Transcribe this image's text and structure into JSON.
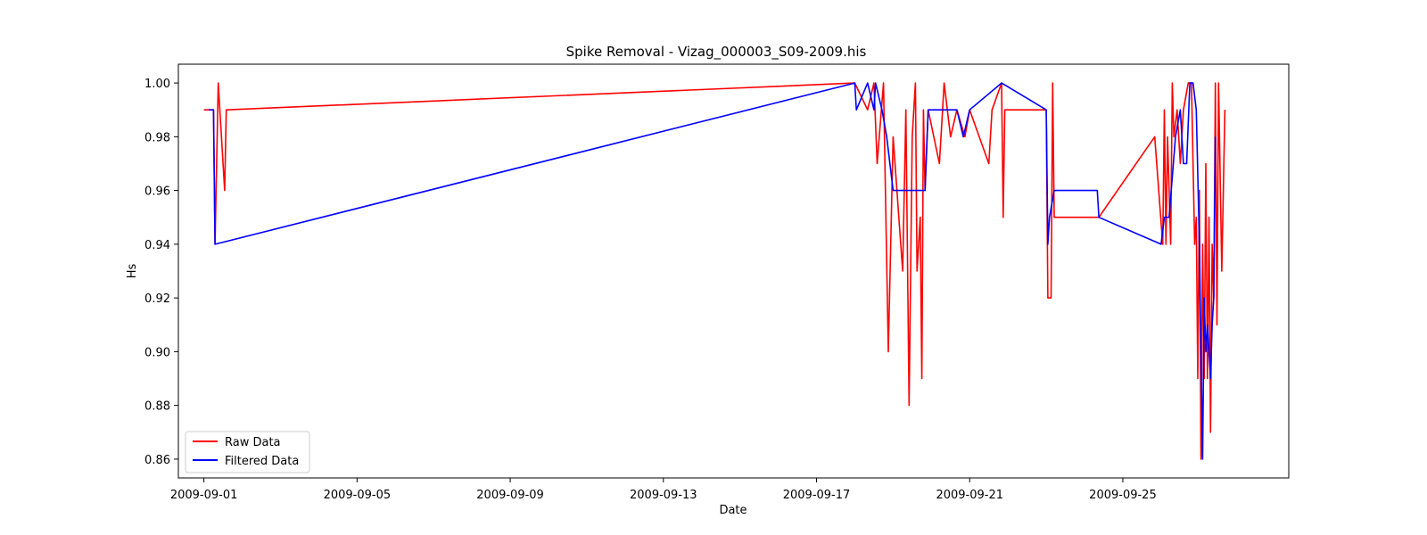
{
  "chart_data": {
    "type": "line",
    "title": "Spike Removal - Vizag_000003_S09-2009.his",
    "xlabel": "Date",
    "ylabel": "Hs",
    "x_axis_type": "date",
    "xlim": [
      "2009-08-31T08:00",
      "2009-09-29T08:00"
    ],
    "ylim": [
      0.853,
      1.007
    ],
    "x_ticks": [
      "2009-09-01",
      "2009-09-05",
      "2009-09-09",
      "2009-09-13",
      "2009-09-17",
      "2009-09-21",
      "2009-09-25"
    ],
    "y_ticks": [
      0.86,
      0.88,
      0.9,
      0.92,
      0.94,
      0.96,
      0.98,
      1.0
    ],
    "y_tick_labels": [
      "0.86",
      "0.88",
      "0.90",
      "0.92",
      "0.94",
      "0.96",
      "0.98",
      "1.00"
    ],
    "grid": false,
    "legend_position": "lower-left",
    "series": [
      {
        "name": "Raw Data",
        "color": "#ff0000",
        "points": [
          [
            "2009-09-01T00:00",
            0.99
          ],
          [
            "2009-09-01T06:00",
            0.99
          ],
          [
            "2009-09-01T07:00",
            0.94
          ],
          [
            "2009-09-01T09:00",
            1.0
          ],
          [
            "2009-09-01T13:00",
            0.96
          ],
          [
            "2009-09-01T14:00",
            0.99
          ],
          [
            "2009-09-18T00:00",
            1.0
          ],
          [
            "2009-09-18T08:00",
            0.99
          ],
          [
            "2009-09-18T12:00",
            1.0
          ],
          [
            "2009-09-18T14:00",
            0.97
          ],
          [
            "2009-09-18T18:00",
            1.0
          ],
          [
            "2009-09-18T21:00",
            0.9
          ],
          [
            "2009-09-19T00:00",
            0.98
          ],
          [
            "2009-09-19T06:00",
            0.93
          ],
          [
            "2009-09-19T08:00",
            0.99
          ],
          [
            "2009-09-19T10:00",
            0.88
          ],
          [
            "2009-09-19T12:00",
            0.98
          ],
          [
            "2009-09-19T14:00",
            1.0
          ],
          [
            "2009-09-19T15:00",
            0.93
          ],
          [
            "2009-09-19T17:00",
            0.95
          ],
          [
            "2009-09-19T18:00",
            0.89
          ],
          [
            "2009-09-19T19:00",
            0.99
          ],
          [
            "2009-09-19T20:00",
            0.96
          ],
          [
            "2009-09-19T22:00",
            0.99
          ],
          [
            "2009-09-20T05:00",
            0.97
          ],
          [
            "2009-09-20T08:00",
            1.0
          ],
          [
            "2009-09-20T12:00",
            0.98
          ],
          [
            "2009-09-20T16:00",
            0.99
          ],
          [
            "2009-09-20T21:00",
            0.98
          ],
          [
            "2009-09-21T00:00",
            0.99
          ],
          [
            "2009-09-21T12:00",
            0.97
          ],
          [
            "2009-09-21T14:00",
            0.99
          ],
          [
            "2009-09-21T20:00",
            1.0
          ],
          [
            "2009-09-21T21:00",
            0.95
          ],
          [
            "2009-09-21T22:00",
            0.99
          ],
          [
            "2009-09-23T00:00",
            0.99
          ],
          [
            "2009-09-23T01:00",
            0.92
          ],
          [
            "2009-09-23T03:00",
            0.92
          ],
          [
            "2009-09-23T04:00",
            1.0
          ],
          [
            "2009-09-23T05:00",
            0.95
          ],
          [
            "2009-09-24T09:00",
            0.95
          ],
          [
            "2009-09-25T20:00",
            0.98
          ],
          [
            "2009-09-26T01:00",
            0.94
          ],
          [
            "2009-09-26T02:00",
            0.99
          ],
          [
            "2009-09-26T03:00",
            0.94
          ],
          [
            "2009-09-26T04:00",
            0.98
          ],
          [
            "2009-09-26T06:00",
            0.94
          ],
          [
            "2009-09-26T07:00",
            1.0
          ],
          [
            "2009-09-26T08:00",
            0.98
          ],
          [
            "2009-09-26T10:00",
            0.99
          ],
          [
            "2009-09-26T12:00",
            0.97
          ],
          [
            "2009-09-26T14:00",
            0.99
          ],
          [
            "2009-09-26T17:00",
            1.0
          ],
          [
            "2009-09-26T19:00",
            1.0
          ],
          [
            "2009-09-26T21:00",
            0.94
          ],
          [
            "2009-09-26T22:00",
            0.95
          ],
          [
            "2009-09-26T23:00",
            0.89
          ],
          [
            "2009-09-27T00:00",
            0.96
          ],
          [
            "2009-09-27T01:00",
            0.86
          ],
          [
            "2009-09-27T02:00",
            0.94
          ],
          [
            "2009-09-27T03:00",
            0.89
          ],
          [
            "2009-09-27T04:00",
            0.97
          ],
          [
            "2009-09-27T05:00",
            0.89
          ],
          [
            "2009-09-27T06:00",
            0.95
          ],
          [
            "2009-09-27T07:00",
            0.87
          ],
          [
            "2009-09-27T08:00",
            0.94
          ],
          [
            "2009-09-27T09:00",
            0.92
          ],
          [
            "2009-09-27T10:00",
            1.0
          ],
          [
            "2009-09-27T11:00",
            0.91
          ],
          [
            "2009-09-27T12:00",
            1.0
          ],
          [
            "2009-09-27T14:00",
            0.93
          ],
          [
            "2009-09-27T16:00",
            0.99
          ]
        ]
      },
      {
        "name": "Filtered Data",
        "color": "#0000ff",
        "points": [
          [
            "2009-09-01T03:00",
            0.99
          ],
          [
            "2009-09-01T06:00",
            0.99
          ],
          [
            "2009-09-01T07:00",
            0.94
          ],
          [
            "2009-09-18T00:00",
            1.0
          ],
          [
            "2009-09-18T01:00",
            0.99
          ],
          [
            "2009-09-18T08:00",
            1.0
          ],
          [
            "2009-09-18T12:00",
            0.99
          ],
          [
            "2009-09-18T13:00",
            1.0
          ],
          [
            "2009-09-18T17:00",
            0.99
          ],
          [
            "2009-09-18T20:00",
            0.98
          ],
          [
            "2009-09-19T00:00",
            0.96
          ],
          [
            "2009-09-19T14:00",
            0.96
          ],
          [
            "2009-09-19T20:00",
            0.96
          ],
          [
            "2009-09-19T22:00",
            0.99
          ],
          [
            "2009-09-20T06:00",
            0.99
          ],
          [
            "2009-09-20T16:00",
            0.99
          ],
          [
            "2009-09-20T20:00",
            0.98
          ],
          [
            "2009-09-21T00:00",
            0.99
          ],
          [
            "2009-09-21T20:00",
            1.0
          ],
          [
            "2009-09-23T00:00",
            0.99
          ],
          [
            "2009-09-23T01:00",
            0.94
          ],
          [
            "2009-09-23T02:00",
            0.95
          ],
          [
            "2009-09-23T05:00",
            0.96
          ],
          [
            "2009-09-24T08:00",
            0.96
          ],
          [
            "2009-09-24T09:00",
            0.95
          ],
          [
            "2009-09-26T00:00",
            0.94
          ],
          [
            "2009-09-26T02:00",
            0.95
          ],
          [
            "2009-09-26T05:00",
            0.95
          ],
          [
            "2009-09-26T09:00",
            0.98
          ],
          [
            "2009-09-26T12:00",
            0.99
          ],
          [
            "2009-09-26T14:00",
            0.97
          ],
          [
            "2009-09-26T16:00",
            0.97
          ],
          [
            "2009-09-26T18:00",
            1.0
          ],
          [
            "2009-09-26T20:00",
            1.0
          ],
          [
            "2009-09-26T22:00",
            0.99
          ],
          [
            "2009-09-27T00:00",
            0.94
          ],
          [
            "2009-09-27T02:00",
            0.86
          ],
          [
            "2009-09-27T03:00",
            0.92
          ],
          [
            "2009-09-27T04:00",
            0.9
          ],
          [
            "2009-09-27T05:00",
            0.91
          ],
          [
            "2009-09-27T06:00",
            0.9
          ],
          [
            "2009-09-27T07:00",
            0.89
          ],
          [
            "2009-09-27T08:00",
            0.91
          ],
          [
            "2009-09-27T09:00",
            0.92
          ],
          [
            "2009-09-27T10:00",
            0.98
          ]
        ]
      }
    ]
  }
}
